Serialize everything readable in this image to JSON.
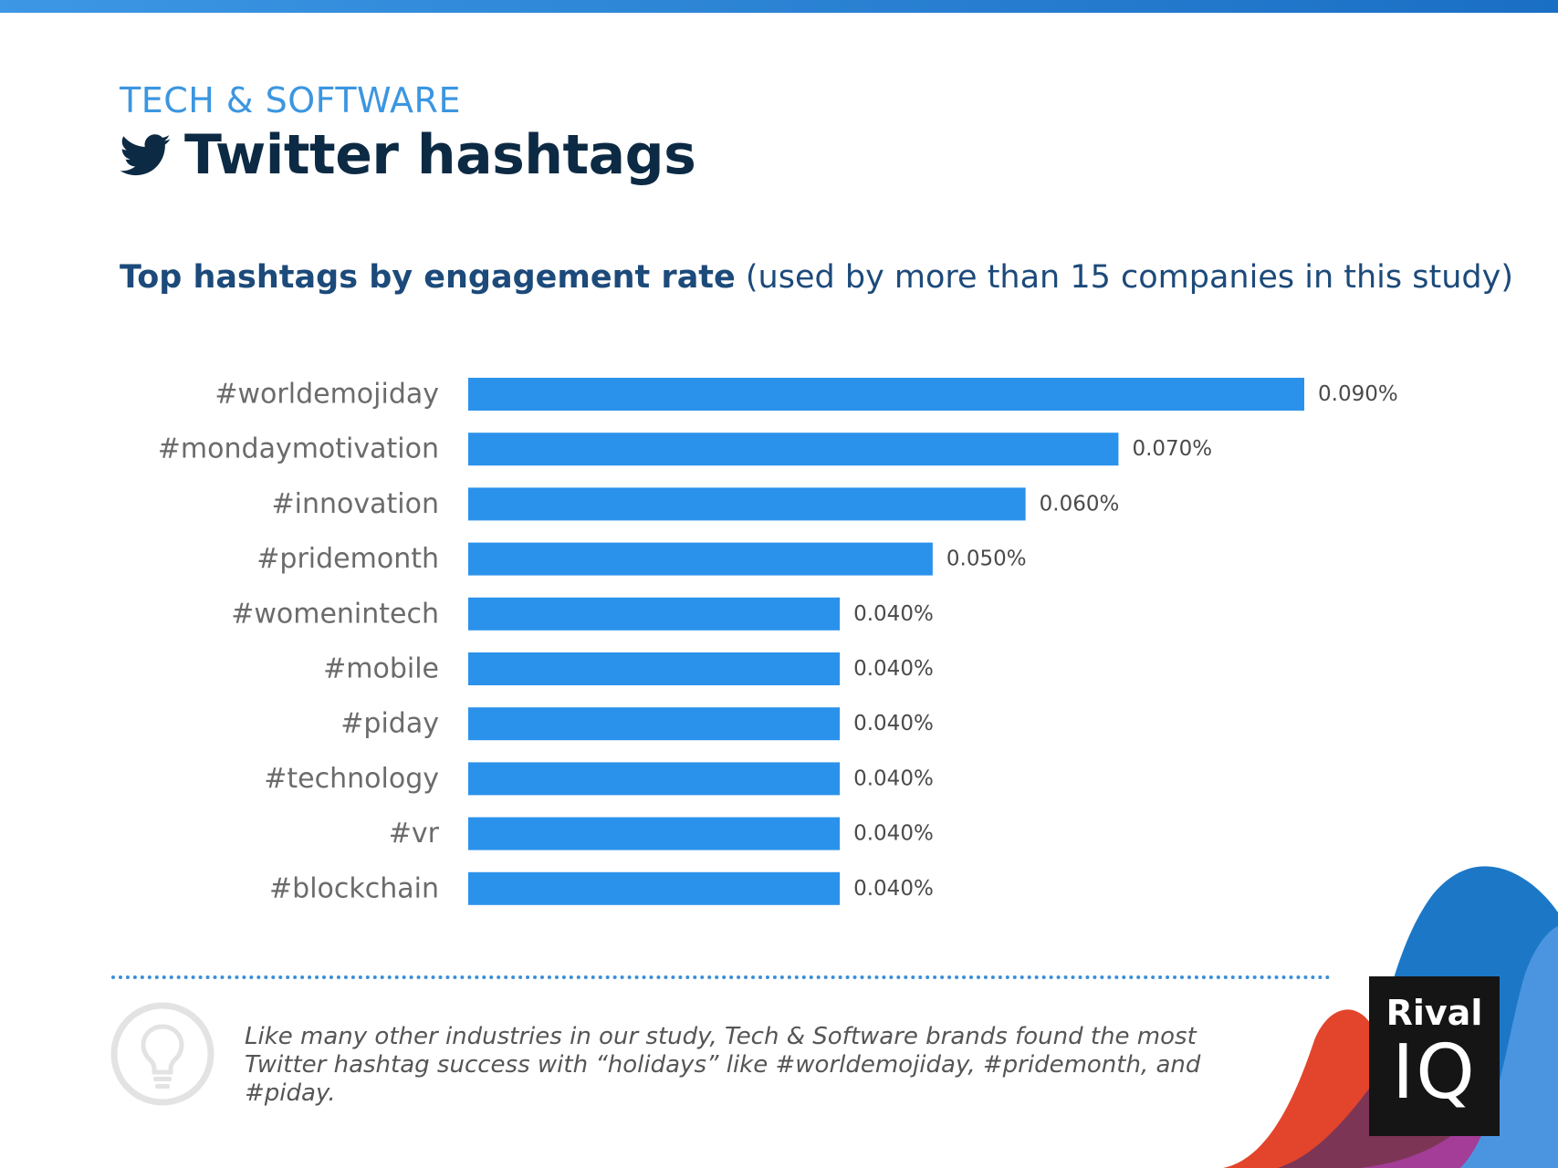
{
  "header": {
    "category": "TECH & SOFTWARE",
    "title": "Twitter hashtags",
    "icon": "twitter-bird-icon"
  },
  "subtitle": {
    "bold": "Top hashtags by engagement rate",
    "normal": " (used by more than 15 companies in this study)"
  },
  "chart_data": {
    "type": "bar",
    "orientation": "horizontal",
    "categories": [
      "#worldemojiday",
      "#mondaymotivation",
      "#innovation",
      "#pridemonth",
      "#womenintech",
      "#mobile",
      "#piday",
      "#technology",
      "#vr",
      "#blockchain"
    ],
    "values": [
      0.09,
      0.07,
      0.06,
      0.05,
      0.04,
      0.04,
      0.04,
      0.04,
      0.04,
      0.04
    ],
    "value_labels": [
      "0.090%",
      "0.070%",
      "0.060%",
      "0.050%",
      "0.040%",
      "0.040%",
      "0.040%",
      "0.040%",
      "0.040%",
      "0.040%"
    ],
    "unit": "%",
    "xlim": [
      0,
      0.09
    ],
    "grid": false,
    "colors": {
      "bar": "#2b92eb",
      "category_label": "#6b6b6b",
      "value_label": "#4a4a4a"
    }
  },
  "note": {
    "icon": "lightbulb-icon",
    "text": "Like many other industries in our study, Tech & Software brands found the most Twitter hashtag success with “holidays” like #worldemojiday, #pridemonth, and #piday."
  },
  "logo": {
    "line1": "Rival",
    "line2": "IQ"
  },
  "colors": {
    "accent": "#3c96e0",
    "title": "#0d2a44",
    "subtitle": "#1c4a7a",
    "divider": "#3a8fd9"
  }
}
